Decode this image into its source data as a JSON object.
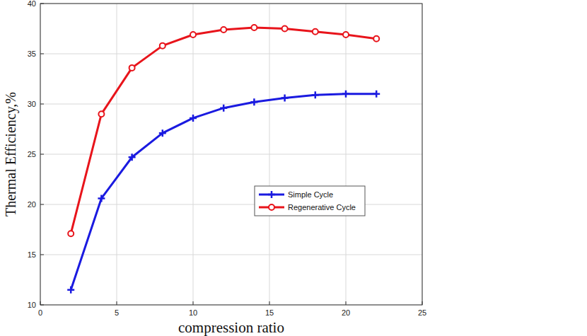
{
  "chart_data": {
    "type": "line",
    "x_label": "compression ratio",
    "y_label": "Thermal Efficiency,%",
    "x": [
      2,
      4,
      6,
      8,
      10,
      12,
      14,
      16,
      18,
      20,
      22
    ],
    "series": [
      {
        "name": "Simple Cycle",
        "color": "#1a1ae0",
        "marker": "plus",
        "values": [
          11.5,
          20.6,
          24.7,
          27.1,
          28.6,
          29.6,
          30.2,
          30.6,
          30.9,
          31.0,
          31.0
        ]
      },
      {
        "name": "Regenerative Cycle",
        "color": "#e8141b",
        "marker": "circle",
        "values": [
          17.1,
          29.0,
          33.6,
          35.8,
          36.9,
          37.4,
          37.6,
          37.5,
          37.2,
          36.9,
          36.5
        ]
      }
    ],
    "xlim": [
      0,
      25
    ],
    "ylim": [
      10,
      40
    ],
    "xticks": [
      0,
      5,
      10,
      15,
      20,
      25
    ],
    "yticks": [
      10,
      15,
      20,
      25,
      30,
      35,
      40
    ],
    "grid": true,
    "legend": "center"
  }
}
